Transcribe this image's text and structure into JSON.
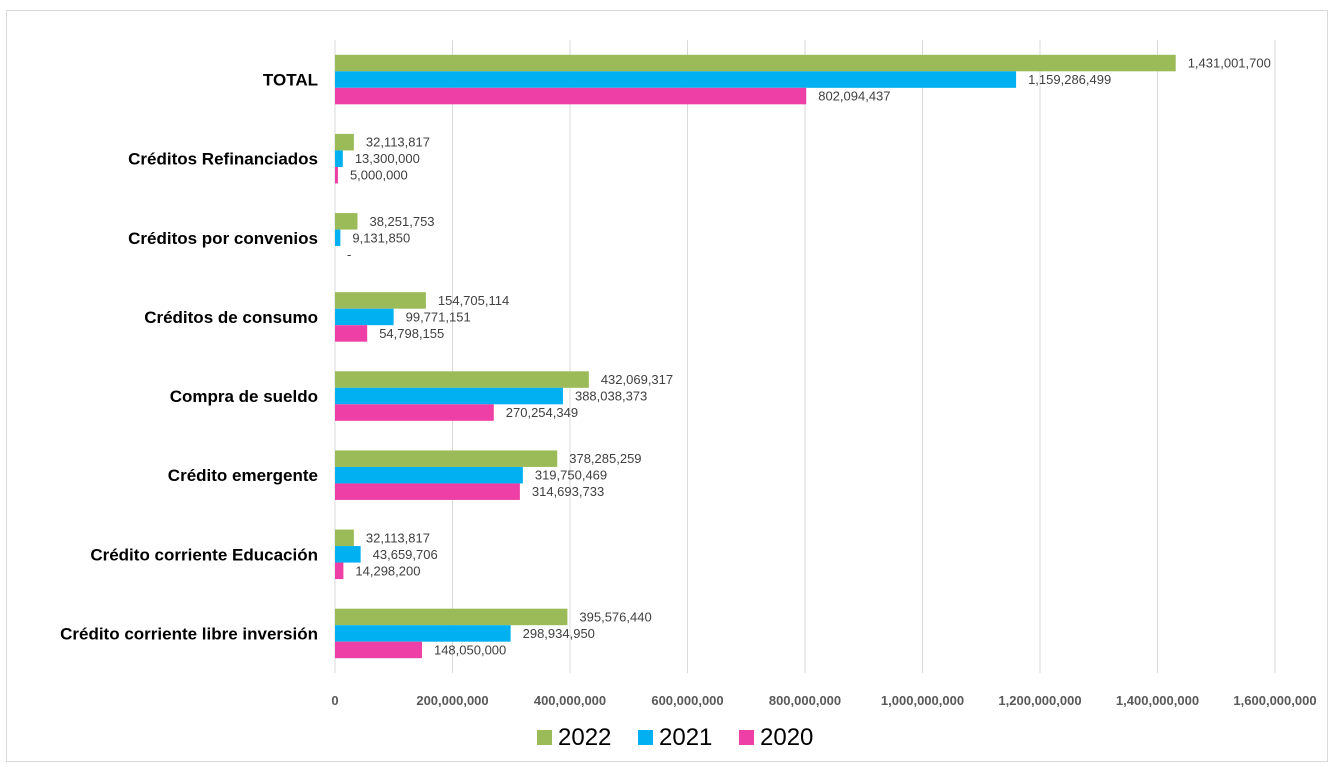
{
  "chart_data": {
    "type": "bar",
    "orientation": "horizontal",
    "categories": [
      "TOTAL",
      "Créditos Refinanciados",
      "Créditos por convenios",
      "Créditos de consumo",
      "Compra de sueldo",
      "Crédito emergente",
      "Crédito corriente Educación",
      "Crédito corriente libre inversión"
    ],
    "series": [
      {
        "name": "2022",
        "color": "#9bbb59",
        "values": [
          1431001700,
          32113817,
          38251753,
          154705114,
          432069317,
          378285259,
          32113817,
          395576440
        ],
        "labels": [
          "1,431,001,700",
          "32,113,817",
          "38,251,753",
          "154,705,114",
          "432,069,317",
          "378,285,259",
          "32,113,817",
          "395,576,440"
        ]
      },
      {
        "name": "2021",
        "color": "#00b0f0",
        "values": [
          1159286499,
          13300000,
          9131850,
          99771151,
          388038373,
          319750469,
          43659706,
          298934950
        ],
        "labels": [
          "1,159,286,499",
          "13,300,000",
          "9,131,850",
          "99,771,151",
          "388,038,373",
          "319,750,469",
          "43,659,706",
          "298,934,950"
        ]
      },
      {
        "name": "2020",
        "color": "#ee3fa6",
        "values": [
          802094437,
          5000000,
          0,
          54798155,
          270254349,
          314693733,
          14298200,
          148050000
        ],
        "labels": [
          "802,094,437",
          "5,000,000",
          "-",
          "54,798,155",
          "270,254,349",
          "314,693,733",
          "14,298,200",
          "148,050,000"
        ]
      }
    ],
    "xlim": [
      0,
      1600000000
    ],
    "xticks": [
      0,
      200000000,
      400000000,
      600000000,
      800000000,
      1000000000,
      1200000000,
      1400000000,
      1600000000
    ],
    "xtick_labels": [
      "0",
      "200,000,000",
      "400,000,000",
      "600,000,000",
      "800,000,000",
      "1,000,000,000",
      "1,200,000,000",
      "1,400,000,000",
      "1,600,000,000"
    ],
    "grid": true,
    "legend": "bottom",
    "title": "",
    "xlabel": "",
    "ylabel": ""
  }
}
